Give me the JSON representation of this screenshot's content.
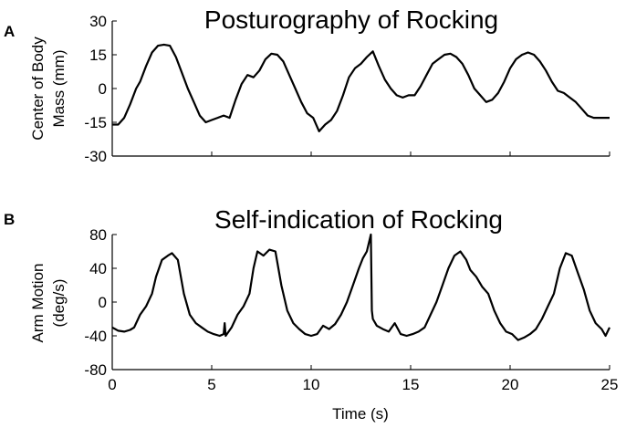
{
  "chart_data": [
    {
      "type": "line",
      "panel_label": "A",
      "title": "Posturography of Rocking",
      "ylabel_lines": [
        "Center of  Body",
        "Mass (mm)"
      ],
      "xlabel": "",
      "xlim": [
        0,
        25
      ],
      "ylim": [
        -30,
        30
      ],
      "xticks": [],
      "yticks": [
        30,
        15,
        0,
        -15,
        -30
      ],
      "series": [
        {
          "color": "#000000",
          "x": [
            0,
            0.3,
            0.6,
            0.9,
            1.2,
            1.4,
            1.7,
            2.0,
            2.3,
            2.6,
            2.9,
            3.2,
            3.5,
            3.8,
            4.1,
            4.4,
            4.7,
            5.0,
            5.3,
            5.6,
            5.9,
            6.2,
            6.5,
            6.8,
            7.1,
            7.4,
            7.7,
            8.0,
            8.3,
            8.6,
            8.9,
            9.2,
            9.5,
            9.8,
            10.1,
            10.4,
            10.7,
            11.0,
            11.3,
            11.6,
            11.9,
            12.2,
            12.5,
            12.8,
            13.1,
            13.4,
            13.7,
            14.0,
            14.3,
            14.6,
            14.9,
            15.2,
            15.5,
            15.8,
            16.1,
            16.4,
            16.7,
            17.0,
            17.3,
            17.6,
            17.9,
            18.2,
            18.5,
            18.8,
            19.1,
            19.4,
            19.7,
            20.0,
            20.3,
            20.6,
            20.9,
            21.2,
            21.5,
            21.8,
            22.1,
            22.4,
            22.7,
            23.0,
            23.3,
            23.6,
            23.9,
            24.2,
            24.5,
            24.8,
            25
          ],
          "y": [
            -16,
            -16,
            -13,
            -7,
            0,
            3,
            10,
            16,
            19,
            19.5,
            19,
            14,
            7,
            0,
            -6,
            -12,
            -15,
            -14,
            -13,
            -12,
            -13,
            -5,
            2,
            6,
            5,
            8,
            13,
            15.5,
            15,
            12,
            6,
            0,
            -6,
            -11,
            -13,
            -19,
            -16,
            -14,
            -10,
            -3,
            5,
            9,
            11,
            14,
            16.5,
            10,
            4,
            0,
            -3,
            -4,
            -3,
            -3,
            1,
            6,
            11,
            13,
            15,
            15.5,
            14,
            11,
            6,
            0,
            -3,
            -6,
            -5,
            -2,
            3,
            9,
            13,
            15,
            16,
            15,
            12,
            8,
            3,
            -1,
            -2,
            -4,
            -6,
            -9,
            -12,
            -13,
            -13,
            -13,
            -13
          ]
        }
      ]
    },
    {
      "type": "line",
      "panel_label": "B",
      "title": "Self-indication of Rocking",
      "ylabel_lines": [
        "Arm Motion",
        "(deg/s)"
      ],
      "xlabel": "Time (s)",
      "xlim": [
        0,
        25
      ],
      "ylim": [
        -80,
        80
      ],
      "xticks": [
        0,
        5,
        10,
        15,
        20,
        25
      ],
      "yticks": [
        80,
        40,
        0,
        -40,
        -80
      ],
      "series": [
        {
          "color": "#000000",
          "x": [
            0,
            0.3,
            0.6,
            0.9,
            1.1,
            1.4,
            1.7,
            2.0,
            2.2,
            2.5,
            2.8,
            3.0,
            3.3,
            3.6,
            3.9,
            4.2,
            4.5,
            4.8,
            5.1,
            5.4,
            5.6,
            5.65,
            5.7,
            6.0,
            6.3,
            6.6,
            6.9,
            7.1,
            7.3,
            7.6,
            7.9,
            8.2,
            8.5,
            8.8,
            9.1,
            9.4,
            9.7,
            10.0,
            10.3,
            10.6,
            10.9,
            11.2,
            11.5,
            11.8,
            12.1,
            12.4,
            12.6,
            12.8,
            12.95,
            13.0,
            13.05,
            13.1,
            13.3,
            13.6,
            13.9,
            14.2,
            14.5,
            14.8,
            15.1,
            15.4,
            15.7,
            16.0,
            16.3,
            16.6,
            16.9,
            17.2,
            17.5,
            17.8,
            18.0,
            18.3,
            18.6,
            18.9,
            19.2,
            19.5,
            19.8,
            20.1,
            20.4,
            20.7,
            21.0,
            21.3,
            21.6,
            21.9,
            22.2,
            22.5,
            22.8,
            23.1,
            23.4,
            23.7,
            24.0,
            24.3,
            24.6,
            24.8,
            25
          ],
          "y": [
            -30,
            -34,
            -35,
            -33,
            -30,
            -15,
            -5,
            10,
            30,
            50,
            55,
            58,
            50,
            10,
            -15,
            -25,
            -30,
            -35,
            -38,
            -40,
            -38,
            -25,
            -40,
            -30,
            -15,
            -5,
            10,
            40,
            60,
            55,
            62,
            60,
            20,
            -10,
            -25,
            -32,
            -38,
            -40,
            -38,
            -28,
            -32,
            -26,
            -15,
            0,
            20,
            40,
            52,
            60,
            75,
            80,
            -10,
            -20,
            -28,
            -32,
            -35,
            -25,
            -38,
            -40,
            -38,
            -35,
            -30,
            -15,
            0,
            20,
            40,
            55,
            60,
            50,
            38,
            30,
            18,
            10,
            -10,
            -25,
            -35,
            -38,
            -45,
            -42,
            -38,
            -32,
            -20,
            -5,
            10,
            40,
            58,
            55,
            35,
            15,
            -10,
            -25,
            -32,
            -40,
            -30
          ]
        }
      ]
    }
  ]
}
